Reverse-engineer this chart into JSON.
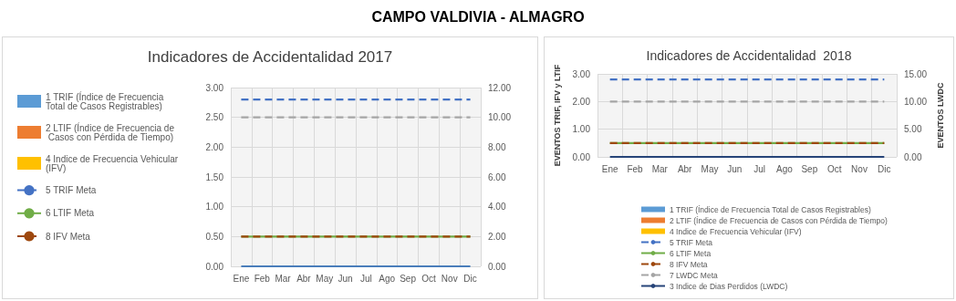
{
  "chart_data": [
    {
      "type": "line",
      "title": "Indicadores de Accidentalidad 2017",
      "annotations": [
        "CAMPO VALDIVIA - ALMAGRO"
      ],
      "categories": [
        "Ene",
        "Feb",
        "Mar",
        "Abr",
        "May",
        "Jun",
        "Jul",
        "Ago",
        "Sep",
        "Oct",
        "Nov",
        "Dic"
      ],
      "series": [
        {
          "name": "1 TRIF (Índice de Frecuencia Total de Casos Registrables)",
          "type": "bar",
          "color": "#5b9bd5",
          "values": [
            0,
            0,
            0,
            0,
            0,
            0,
            0,
            0,
            0,
            0,
            0,
            0
          ]
        },
        {
          "name": "2 LTIF (Índice de Frecuencia de Casos con Pérdida de Tiempo)",
          "type": "bar",
          "color": "#ed7d31",
          "values": [
            0,
            0,
            0,
            0,
            0,
            0,
            0,
            0,
            0,
            0,
            0,
            0
          ]
        },
        {
          "name": "4 Indice de Frecuencia Vehicular (IFV)",
          "type": "bar",
          "color": "#ffc000",
          "values": [
            0,
            0,
            0,
            0,
            0,
            0,
            0,
            0,
            0,
            0,
            0,
            0
          ]
        },
        {
          "name": "5 TRIF Meta",
          "color": "#4472c4",
          "line_style": "dashed",
          "values": [
            2.8,
            2.8,
            2.8,
            2.8,
            2.8,
            2.8,
            2.8,
            2.8,
            2.8,
            2.8,
            2.8,
            2.8
          ]
        },
        {
          "name": "6 LTIF Meta",
          "color": "#70ad47",
          "line_style": "solid",
          "values": [
            0.5,
            0.5,
            0.5,
            0.5,
            0.5,
            0.5,
            0.5,
            0.5,
            0.5,
            0.5,
            0.5,
            0.5
          ]
        },
        {
          "name": "8 IFV Meta",
          "color": "#9e480e",
          "line_style": "dashed",
          "values": [
            0.5,
            0.5,
            0.5,
            0.5,
            0.5,
            0.5,
            0.5,
            0.5,
            0.5,
            0.5,
            0.5,
            0.5
          ]
        },
        {
          "color": "#a5a5a5",
          "line_style": "dashed",
          "axis": "y2",
          "values": [
            10,
            10,
            10,
            10,
            10,
            10,
            10,
            10,
            10,
            10,
            10,
            10
          ]
        },
        {
          "color": "#4a7ebb",
          "line_style": "solid",
          "axis": "y2",
          "values": [
            0,
            0,
            0,
            0,
            0,
            0,
            0,
            0,
            0,
            0,
            0,
            0
          ]
        }
      ],
      "ylim": [
        0,
        3
      ],
      "yticks": [
        {
          "value": 0,
          "label": "0.00"
        },
        {
          "value": 0.5,
          "label": "0.50"
        },
        {
          "value": 1,
          "label": "1.00"
        },
        {
          "value": 1.5,
          "label": "1.50"
        },
        {
          "value": 2,
          "label": "2.00"
        },
        {
          "value": 2.5,
          "label": "2.50"
        },
        {
          "value": 3,
          "label": "3.00"
        }
      ],
      "y2lim": [
        0,
        12
      ],
      "y2ticks": [
        {
          "value": 0,
          "label": "0.00"
        },
        {
          "value": 2,
          "label": "2.00"
        },
        {
          "value": 4,
          "label": "4.00"
        },
        {
          "value": 6,
          "label": "6.00"
        },
        {
          "value": 8,
          "label": "8.00"
        },
        {
          "value": 10,
          "label": "10.00"
        },
        {
          "value": 12,
          "label": "12.00"
        }
      ],
      "grid": true,
      "legend": "left",
      "marker": "none"
    },
    {
      "type": "line",
      "title": "Indicadores de Accidentalidad  2018",
      "ylabel": "EVENTOS TRIF, IFV y LTIF",
      "y2label": "EVENTOS LWDC",
      "categories": [
        "Ene",
        "Feb",
        "Mar",
        "Abr",
        "May",
        "Jun",
        "Jul",
        "Ago",
        "Sep",
        "Oct",
        "Nov",
        "Dic"
      ],
      "series": [
        {
          "name": "1 TRIF (Índice de Frecuencia Total de Casos Registrables)",
          "type": "bar",
          "color": "#5b9bd5",
          "values": [
            0,
            0,
            0,
            0,
            0,
            0,
            0,
            0,
            0,
            0,
            0,
            0
          ]
        },
        {
          "name": "2 LTIF (Índice de Frecuencia de Casos con Pérdida de Tiempo)",
          "type": "bar",
          "color": "#ed7d31",
          "values": [
            0,
            0,
            0,
            0,
            0,
            0,
            0,
            0,
            0,
            0,
            0,
            0
          ]
        },
        {
          "name": "4 Indice de Frecuencia Vehicular (IFV)",
          "type": "bar",
          "color": "#ffc000",
          "values": [
            0,
            0,
            0,
            0,
            0,
            0,
            0,
            0,
            0,
            0,
            0,
            0
          ]
        },
        {
          "name": "5 TRIF Meta",
          "color": "#4472c4",
          "line_style": "dashed",
          "values": [
            2.8,
            2.8,
            2.8,
            2.8,
            2.8,
            2.8,
            2.8,
            2.8,
            2.8,
            2.8,
            2.8,
            2.8
          ]
        },
        {
          "name": "6 LTIF Meta",
          "color": "#70ad47",
          "line_style": "solid",
          "values": [
            0.5,
            0.5,
            0.5,
            0.5,
            0.5,
            0.5,
            0.5,
            0.5,
            0.5,
            0.5,
            0.5,
            0.5
          ]
        },
        {
          "name": "8 IFV Meta",
          "color": "#9e480e",
          "line_style": "dashed",
          "values": [
            0.5,
            0.5,
            0.5,
            0.5,
            0.5,
            0.5,
            0.5,
            0.5,
            0.5,
            0.5,
            0.5,
            0.5
          ]
        },
        {
          "name": "7 LWDC Meta",
          "color": "#a5a5a5",
          "line_style": "dashed",
          "axis": "y2",
          "values": [
            10,
            10,
            10,
            10,
            10,
            10,
            10,
            10,
            10,
            10,
            10,
            10
          ]
        },
        {
          "name": "3 Indice de Dias Perdidos (LWDC)",
          "color": "#264478",
          "line_style": "solid",
          "axis": "y2",
          "values": [
            0,
            0,
            0,
            0,
            0,
            0,
            0,
            0,
            0,
            0,
            0,
            0
          ]
        }
      ],
      "ylim": [
        0,
        3
      ],
      "yticks": [
        {
          "value": 0,
          "label": "0.00"
        },
        {
          "value": 1,
          "label": "1.00"
        },
        {
          "value": 2,
          "label": "2.00"
        },
        {
          "value": 3,
          "label": "3.00"
        }
      ],
      "y2lim": [
        0,
        15
      ],
      "y2ticks": [
        {
          "value": 0,
          "label": "0.00"
        },
        {
          "value": 5,
          "label": "5.00"
        },
        {
          "value": 10,
          "label": "10.00"
        },
        {
          "value": 15,
          "label": "15.00"
        }
      ],
      "grid": true,
      "legend": "bottom",
      "marker": "none"
    }
  ]
}
